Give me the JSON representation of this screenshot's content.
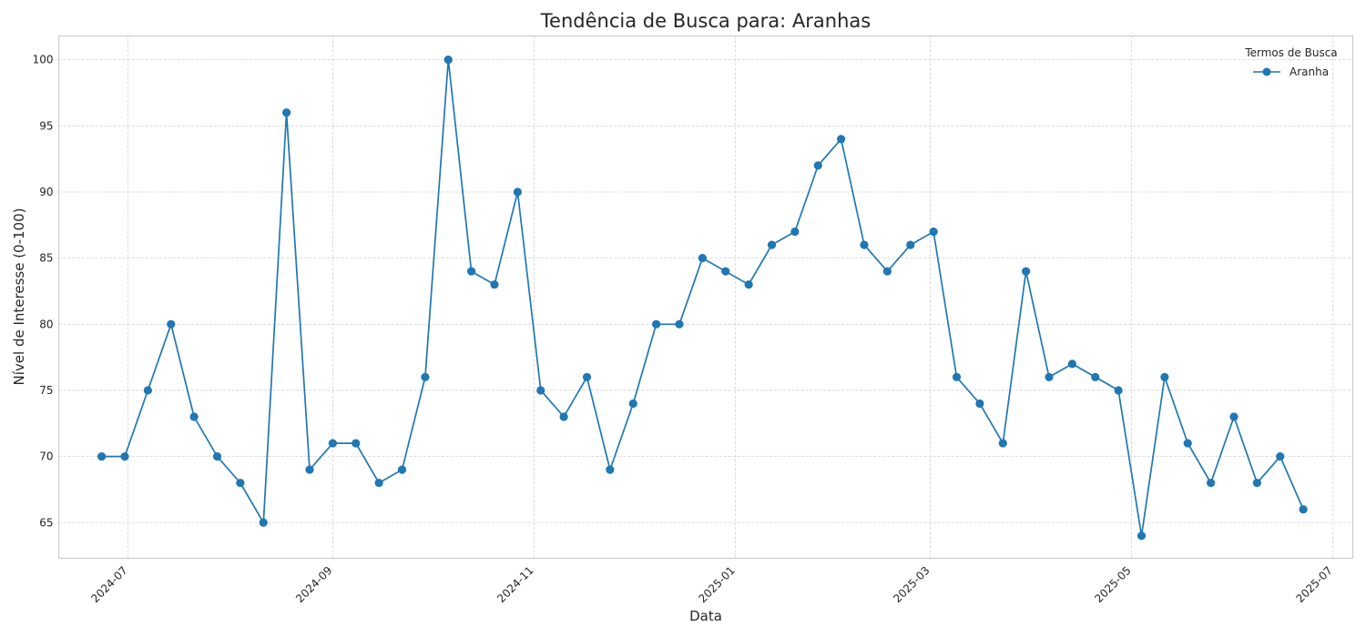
{
  "chart_data": {
    "type": "line",
    "title": "Tendência de Busca para: Aranhas",
    "xlabel": "Data",
    "ylabel": "Nível de Interesse (0-100)",
    "ylim": [
      62.3,
      101.8
    ],
    "xlim": [
      "2024-06-10",
      "2025-07-07"
    ],
    "yticks": [
      65,
      70,
      75,
      80,
      85,
      90,
      95,
      100
    ],
    "xticks": [
      {
        "date": "2024-07-01",
        "label": "2024-07"
      },
      {
        "date": "2024-09-01",
        "label": "2024-09"
      },
      {
        "date": "2024-11-01",
        "label": "2024-11"
      },
      {
        "date": "2025-01-01",
        "label": "2025-01"
      },
      {
        "date": "2025-03-01",
        "label": "2025-03"
      },
      {
        "date": "2025-05-01",
        "label": "2025-05"
      },
      {
        "date": "2025-07-01",
        "label": "2025-07"
      }
    ],
    "grid": true,
    "legend": {
      "title": "Termos de Busca",
      "position": "top-right"
    },
    "series": [
      {
        "name": "Aranha",
        "color": "#1f77b4",
        "x": [
          "2024-06-23",
          "2024-06-30",
          "2024-07-07",
          "2024-07-14",
          "2024-07-21",
          "2024-07-28",
          "2024-08-04",
          "2024-08-11",
          "2024-08-18",
          "2024-08-25",
          "2024-09-01",
          "2024-09-08",
          "2024-09-15",
          "2024-09-22",
          "2024-09-29",
          "2024-10-06",
          "2024-10-13",
          "2024-10-20",
          "2024-10-27",
          "2024-11-03",
          "2024-11-10",
          "2024-11-17",
          "2024-11-24",
          "2024-12-01",
          "2024-12-08",
          "2024-12-15",
          "2024-12-22",
          "2024-12-29",
          "2025-01-05",
          "2025-01-12",
          "2025-01-19",
          "2025-01-26",
          "2025-02-02",
          "2025-02-09",
          "2025-02-16",
          "2025-02-23",
          "2025-03-02",
          "2025-03-09",
          "2025-03-16",
          "2025-03-23",
          "2025-03-30",
          "2025-04-06",
          "2025-04-13",
          "2025-04-20",
          "2025-04-27",
          "2025-05-04",
          "2025-05-11",
          "2025-05-18",
          "2025-05-25",
          "2025-06-01",
          "2025-06-08",
          "2025-06-15",
          "2025-06-22"
        ],
        "values": [
          70,
          70,
          75,
          80,
          73,
          70,
          68,
          65,
          96,
          69,
          71,
          71,
          68,
          69,
          76,
          100,
          84,
          83,
          90,
          75,
          73,
          76,
          69,
          74,
          80,
          80,
          85,
          84,
          83,
          86,
          87,
          92,
          94,
          86,
          84,
          86,
          87,
          76,
          74,
          71,
          84,
          76,
          77,
          76,
          75,
          64,
          76,
          71,
          68,
          73,
          68,
          70,
          66
        ]
      }
    ]
  }
}
